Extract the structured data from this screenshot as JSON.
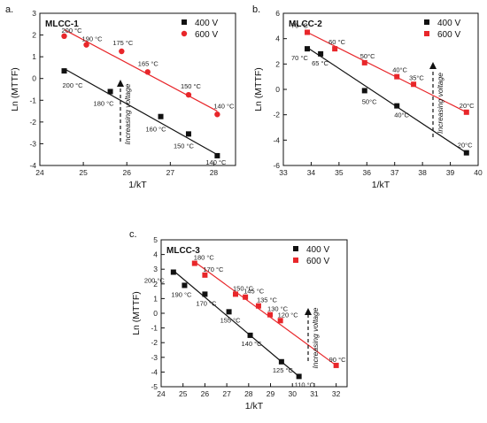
{
  "chart_data": [
    {
      "type": "scatter",
      "panel_label": "a.",
      "title": "MLCC-1",
      "xlabel": "1/kT",
      "ylabel": "Ln (MTTF)",
      "xlim": [
        24,
        28.5
      ],
      "ylim": [
        -4,
        3
      ],
      "xticks": [
        24,
        25,
        26,
        27,
        28
      ],
      "yticks": [
        -4,
        -3,
        -2,
        -1,
        0,
        1,
        2,
        3
      ],
      "annotation": "Increasing voltage",
      "legend_position": "top-right",
      "colors": {
        "400 V": "#111111",
        "600 V": "#e8262a"
      },
      "series": [
        {
          "name": "400 V",
          "x": [
            24.56,
            25.62,
            26.78,
            27.42,
            28.08
          ],
          "y": [
            0.35,
            -0.6,
            -1.75,
            -2.55,
            -3.55
          ],
          "labels": [
            "200 °C",
            "180 °C",
            "160 °C",
            "150 °C",
            "140 °C"
          ],
          "fit": [
            [
              24.56,
              0.45
            ],
            [
              28.08,
              -3.5
            ]
          ]
        },
        {
          "name": "600 V",
          "x": [
            24.56,
            25.07,
            25.88,
            26.48,
            27.42,
            28.08
          ],
          "y": [
            1.95,
            1.55,
            1.25,
            0.3,
            -0.75,
            -1.65
          ],
          "labels": [
            "200 °C",
            "190 °C",
            "175 °C",
            "165 °C",
            "150 °C",
            "140 °C"
          ],
          "fit": [
            [
              24.56,
              2.25
            ],
            [
              28.08,
              -1.5
            ]
          ]
        }
      ]
    },
    {
      "type": "scatter",
      "panel_label": "b.",
      "title": "MLCC-2",
      "xlabel": "1/kT",
      "ylabel": "Ln (MTTF)",
      "xlim": [
        33,
        40
      ],
      "ylim": [
        -6,
        6
      ],
      "xticks": [
        33,
        34,
        35,
        36,
        37,
        38,
        39,
        40
      ],
      "yticks": [
        -6,
        -4,
        -2,
        0,
        2,
        4,
        6
      ],
      "annotation": "Increasing voltage",
      "legend_position": "top-right",
      "colors": {
        "400 V": "#111111",
        "600 V": "#e8262a"
      },
      "series": [
        {
          "name": "400 V",
          "x": [
            33.86,
            34.34,
            35.92,
            37.08,
            39.58
          ],
          "y": [
            3.2,
            2.8,
            -0.1,
            -1.3,
            -5.0
          ],
          "labels": [
            "70 °C",
            "65 °C",
            "50°C",
            "40°C",
            "20°C"
          ],
          "fit": [
            [
              33.86,
              3.3
            ],
            [
              39.58,
              -5.0
            ]
          ]
        },
        {
          "name": "600 V",
          "x": [
            33.86,
            34.85,
            35.92,
            37.08,
            37.68,
            39.58
          ],
          "y": [
            4.5,
            3.2,
            2.1,
            1.0,
            0.4,
            -1.8
          ],
          "labels": [
            "70 °C",
            "60 °C",
            "50°C",
            "40°C",
            "35°C",
            "20°C"
          ],
          "fit": [
            [
              33.86,
              4.5
            ],
            [
              39.58,
              -1.8
            ]
          ]
        }
      ]
    },
    {
      "type": "scatter",
      "panel_label": "c.",
      "title": "MLCC-3",
      "xlabel": "1/kT",
      "ylabel": "Ln (MTTF)",
      "xlim": [
        24,
        32.5
      ],
      "ylim": [
        -5,
        5
      ],
      "xticks": [
        24,
        25,
        26,
        27,
        28,
        29,
        30,
        31,
        32
      ],
      "yticks": [
        -5,
        -4,
        -3,
        -2,
        -1,
        0,
        1,
        2,
        3,
        4,
        5
      ],
      "annotation": "Increasing voltage",
      "legend_position": "top-right",
      "colors": {
        "400 V": "#111111",
        "600 V": "#e8262a"
      },
      "series": [
        {
          "name": "400 V",
          "x": [
            24.56,
            25.07,
            26.0,
            27.1,
            28.07,
            29.5,
            30.3
          ],
          "y": [
            2.8,
            1.9,
            1.3,
            0.1,
            -1.5,
            -3.3,
            -4.3
          ],
          "labels": [
            "200 °C",
            "190 °C",
            "170 °C",
            "155 °C",
            "140 °C",
            "125 °C",
            "110 °C"
          ],
          "fit": [
            [
              24.56,
              2.9
            ],
            [
              30.3,
              -4.3
            ]
          ]
        },
        {
          "name": "600 V",
          "x": [
            25.53,
            26.0,
            27.4,
            27.85,
            28.45,
            28.98,
            29.45,
            32.0
          ],
          "y": [
            3.4,
            2.6,
            1.3,
            1.1,
            0.5,
            -0.1,
            -0.5,
            -3.55
          ],
          "labels": [
            "180 °C",
            "170 °C",
            "150 °C",
            "145 °C",
            "135 °C",
            "130 °C",
            "120 °C",
            "90 °C"
          ],
          "fit": [
            [
              25.53,
              3.5
            ],
            [
              32.0,
              -3.55
            ]
          ]
        }
      ]
    }
  ]
}
